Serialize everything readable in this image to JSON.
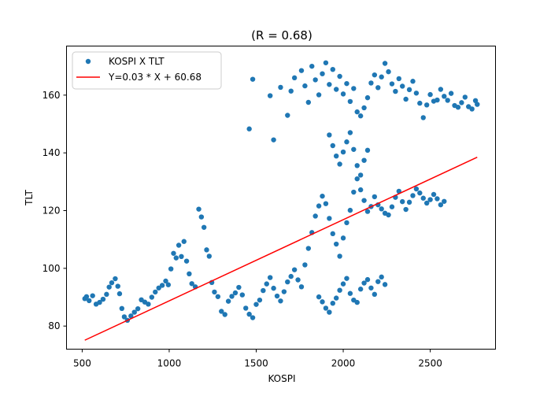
{
  "chart_data": {
    "type": "scatter",
    "title": "(R = 0.68)",
    "xlabel": "KOSPI",
    "ylabel": "TLT",
    "xlim": [
      410,
      2875
    ],
    "ylim": [
      72,
      177
    ],
    "x_ticks": [
      500,
      1000,
      1500,
      2000,
      2500
    ],
    "y_ticks": [
      80,
      100,
      120,
      140,
      160
    ],
    "grid": false,
    "legend_position": "top-left",
    "series": [
      {
        "name": "KOSPI X TLT",
        "kind": "scatter",
        "color": "#1f77b4",
        "points": [
          [
            515,
            89.5
          ],
          [
            525,
            90.2
          ],
          [
            540,
            88.8
          ],
          [
            560,
            90.5
          ],
          [
            580,
            87.6
          ],
          [
            600,
            88.2
          ],
          [
            620,
            89.3
          ],
          [
            640,
            91.0
          ],
          [
            655,
            93.5
          ],
          [
            670,
            95.0
          ],
          [
            690,
            96.4
          ],
          [
            705,
            93.8
          ],
          [
            715,
            91.2
          ],
          [
            728,
            86.1
          ],
          [
            742,
            83.2
          ],
          [
            760,
            82.0
          ],
          [
            780,
            83.5
          ],
          [
            800,
            84.8
          ],
          [
            820,
            86.0
          ],
          [
            840,
            89.1
          ],
          [
            860,
            88.3
          ],
          [
            880,
            87.6
          ],
          [
            900,
            90.0
          ],
          [
            920,
            91.8
          ],
          [
            940,
            93.2
          ],
          [
            960,
            94.1
          ],
          [
            980,
            95.6
          ],
          [
            995,
            94.3
          ],
          [
            1010,
            99.8
          ],
          [
            1025,
            105.2
          ],
          [
            1040,
            103.6
          ],
          [
            1055,
            108.0
          ],
          [
            1070,
            104.1
          ],
          [
            1085,
            109.3
          ],
          [
            1100,
            102.5
          ],
          [
            1115,
            98.1
          ],
          [
            1130,
            94.7
          ],
          [
            1150,
            93.6
          ],
          [
            1170,
            120.5
          ],
          [
            1185,
            117.8
          ],
          [
            1200,
            114.2
          ],
          [
            1215,
            106.4
          ],
          [
            1230,
            104.2
          ],
          [
            1245,
            95.1
          ],
          [
            1260,
            91.8
          ],
          [
            1280,
            90.2
          ],
          [
            1300,
            85.1
          ],
          [
            1320,
            84.0
          ],
          [
            1340,
            88.6
          ],
          [
            1360,
            90.3
          ],
          [
            1380,
            91.5
          ],
          [
            1400,
            93.4
          ],
          [
            1420,
            90.8
          ],
          [
            1440,
            86.2
          ],
          [
            1460,
            84.1
          ],
          [
            1480,
            82.9
          ],
          [
            1500,
            87.5
          ],
          [
            1520,
            89.0
          ],
          [
            1540,
            92.3
          ],
          [
            1560,
            94.6
          ],
          [
            1580,
            96.8
          ],
          [
            1600,
            93.1
          ],
          [
            1620,
            90.4
          ],
          [
            1640,
            88.7
          ],
          [
            1660,
            91.9
          ],
          [
            1680,
            95.3
          ],
          [
            1700,
            97.2
          ],
          [
            1720,
            99.5
          ],
          [
            1740,
            96.0
          ],
          [
            1760,
            93.6
          ],
          [
            1780,
            101.2
          ],
          [
            1800,
            106.9
          ],
          [
            1820,
            112.4
          ],
          [
            1840,
            118.1
          ],
          [
            1860,
            121.6
          ],
          [
            1880,
            125.0
          ],
          [
            1900,
            122.4
          ],
          [
            1920,
            117.3
          ],
          [
            1940,
            112.0
          ],
          [
            1960,
            108.4
          ],
          [
            1980,
            104.2
          ],
          [
            2000,
            110.5
          ],
          [
            2020,
            115.8
          ],
          [
            2040,
            120.1
          ],
          [
            2060,
            126.4
          ],
          [
            2080,
            131.0
          ],
          [
            2100,
            127.2
          ],
          [
            2120,
            123.5
          ],
          [
            2140,
            119.7
          ],
          [
            2160,
            121.4
          ],
          [
            2180,
            124.8
          ],
          [
            2200,
            122.0
          ],
          [
            2220,
            120.6
          ],
          [
            2240,
            119.1
          ],
          [
            2260,
            118.5
          ],
          [
            2280,
            121.3
          ],
          [
            2300,
            124.6
          ],
          [
            2320,
            126.7
          ],
          [
            2340,
            123.1
          ],
          [
            2360,
            120.4
          ],
          [
            2380,
            122.9
          ],
          [
            2400,
            125.2
          ],
          [
            2420,
            127.5
          ],
          [
            2440,
            126.1
          ],
          [
            2460,
            124.3
          ],
          [
            2480,
            122.6
          ],
          [
            2500,
            123.8
          ],
          [
            2520,
            125.6
          ],
          [
            2540,
            124.1
          ],
          [
            2560,
            122.0
          ],
          [
            2580,
            123.2
          ],
          [
            1860,
            90.1
          ],
          [
            1880,
            88.4
          ],
          [
            1900,
            86.2
          ],
          [
            1920,
            84.8
          ],
          [
            1940,
            87.9
          ],
          [
            1960,
            89.7
          ],
          [
            1980,
            92.4
          ],
          [
            2000,
            94.6
          ],
          [
            2020,
            96.5
          ],
          [
            2040,
            91.3
          ],
          [
            2060,
            89.0
          ],
          [
            2080,
            88.2
          ],
          [
            2100,
            92.8
          ],
          [
            2120,
            94.9
          ],
          [
            2140,
            96.1
          ],
          [
            2160,
            93.2
          ],
          [
            2180,
            91.0
          ],
          [
            2200,
            95.4
          ],
          [
            2220,
            97.0
          ],
          [
            2240,
            94.4
          ],
          [
            1920,
            146.2
          ],
          [
            1940,
            142.5
          ],
          [
            1960,
            138.9
          ],
          [
            1980,
            136.1
          ],
          [
            2000,
            140.3
          ],
          [
            2020,
            143.8
          ],
          [
            2040,
            147.0
          ],
          [
            2060,
            141.2
          ],
          [
            2080,
            135.6
          ],
          [
            2100,
            132.3
          ],
          [
            2120,
            137.4
          ],
          [
            2140,
            140.9
          ],
          [
            1460,
            148.3
          ],
          [
            1480,
            165.5
          ],
          [
            1580,
            159.8
          ],
          [
            1600,
            144.5
          ],
          [
            1640,
            162.7
          ],
          [
            1680,
            153.0
          ],
          [
            1700,
            161.4
          ],
          [
            1720,
            166.0
          ],
          [
            1760,
            168.5
          ],
          [
            1780,
            163.2
          ],
          [
            1800,
            157.5
          ],
          [
            1820,
            170.0
          ],
          [
            1840,
            165.3
          ],
          [
            1860,
            160.1
          ],
          [
            1880,
            167.4
          ],
          [
            1900,
            171.2
          ],
          [
            1920,
            163.7
          ],
          [
            1940,
            168.9
          ],
          [
            1960,
            162.0
          ],
          [
            1980,
            166.5
          ],
          [
            2000,
            160.4
          ],
          [
            2020,
            164.0
          ],
          [
            2040,
            157.8
          ],
          [
            2060,
            162.3
          ],
          [
            2080,
            154.2
          ],
          [
            2100,
            152.8
          ],
          [
            2120,
            155.6
          ],
          [
            2140,
            159.1
          ],
          [
            2160,
            164.2
          ],
          [
            2180,
            167.0
          ],
          [
            2200,
            162.6
          ],
          [
            2220,
            166.3
          ],
          [
            2240,
            171.0
          ],
          [
            2260,
            168.1
          ],
          [
            2280,
            163.9
          ],
          [
            2300,
            161.3
          ],
          [
            2320,
            165.7
          ],
          [
            2340,
            163.1
          ],
          [
            2360,
            158.6
          ],
          [
            2380,
            161.9
          ],
          [
            2400,
            164.8
          ],
          [
            2420,
            160.7
          ],
          [
            2440,
            157.2
          ],
          [
            2460,
            152.2
          ],
          [
            2480,
            156.6
          ],
          [
            2500,
            160.2
          ],
          [
            2520,
            157.9
          ],
          [
            2540,
            158.3
          ],
          [
            2560,
            162.0
          ],
          [
            2580,
            159.6
          ],
          [
            2600,
            158.2
          ],
          [
            2620,
            160.6
          ],
          [
            2640,
            156.4
          ],
          [
            2660,
            155.8
          ],
          [
            2680,
            157.4
          ],
          [
            2700,
            159.3
          ],
          [
            2720,
            156.0
          ],
          [
            2740,
            155.2
          ],
          [
            2760,
            158.1
          ],
          [
            2770,
            156.8
          ]
        ]
      },
      {
        "name": "Y=0.03 * X + 60.68",
        "kind": "line",
        "color": "#ff0000",
        "points": [
          [
            515,
            75.1
          ],
          [
            2770,
            138.5
          ]
        ]
      }
    ]
  }
}
